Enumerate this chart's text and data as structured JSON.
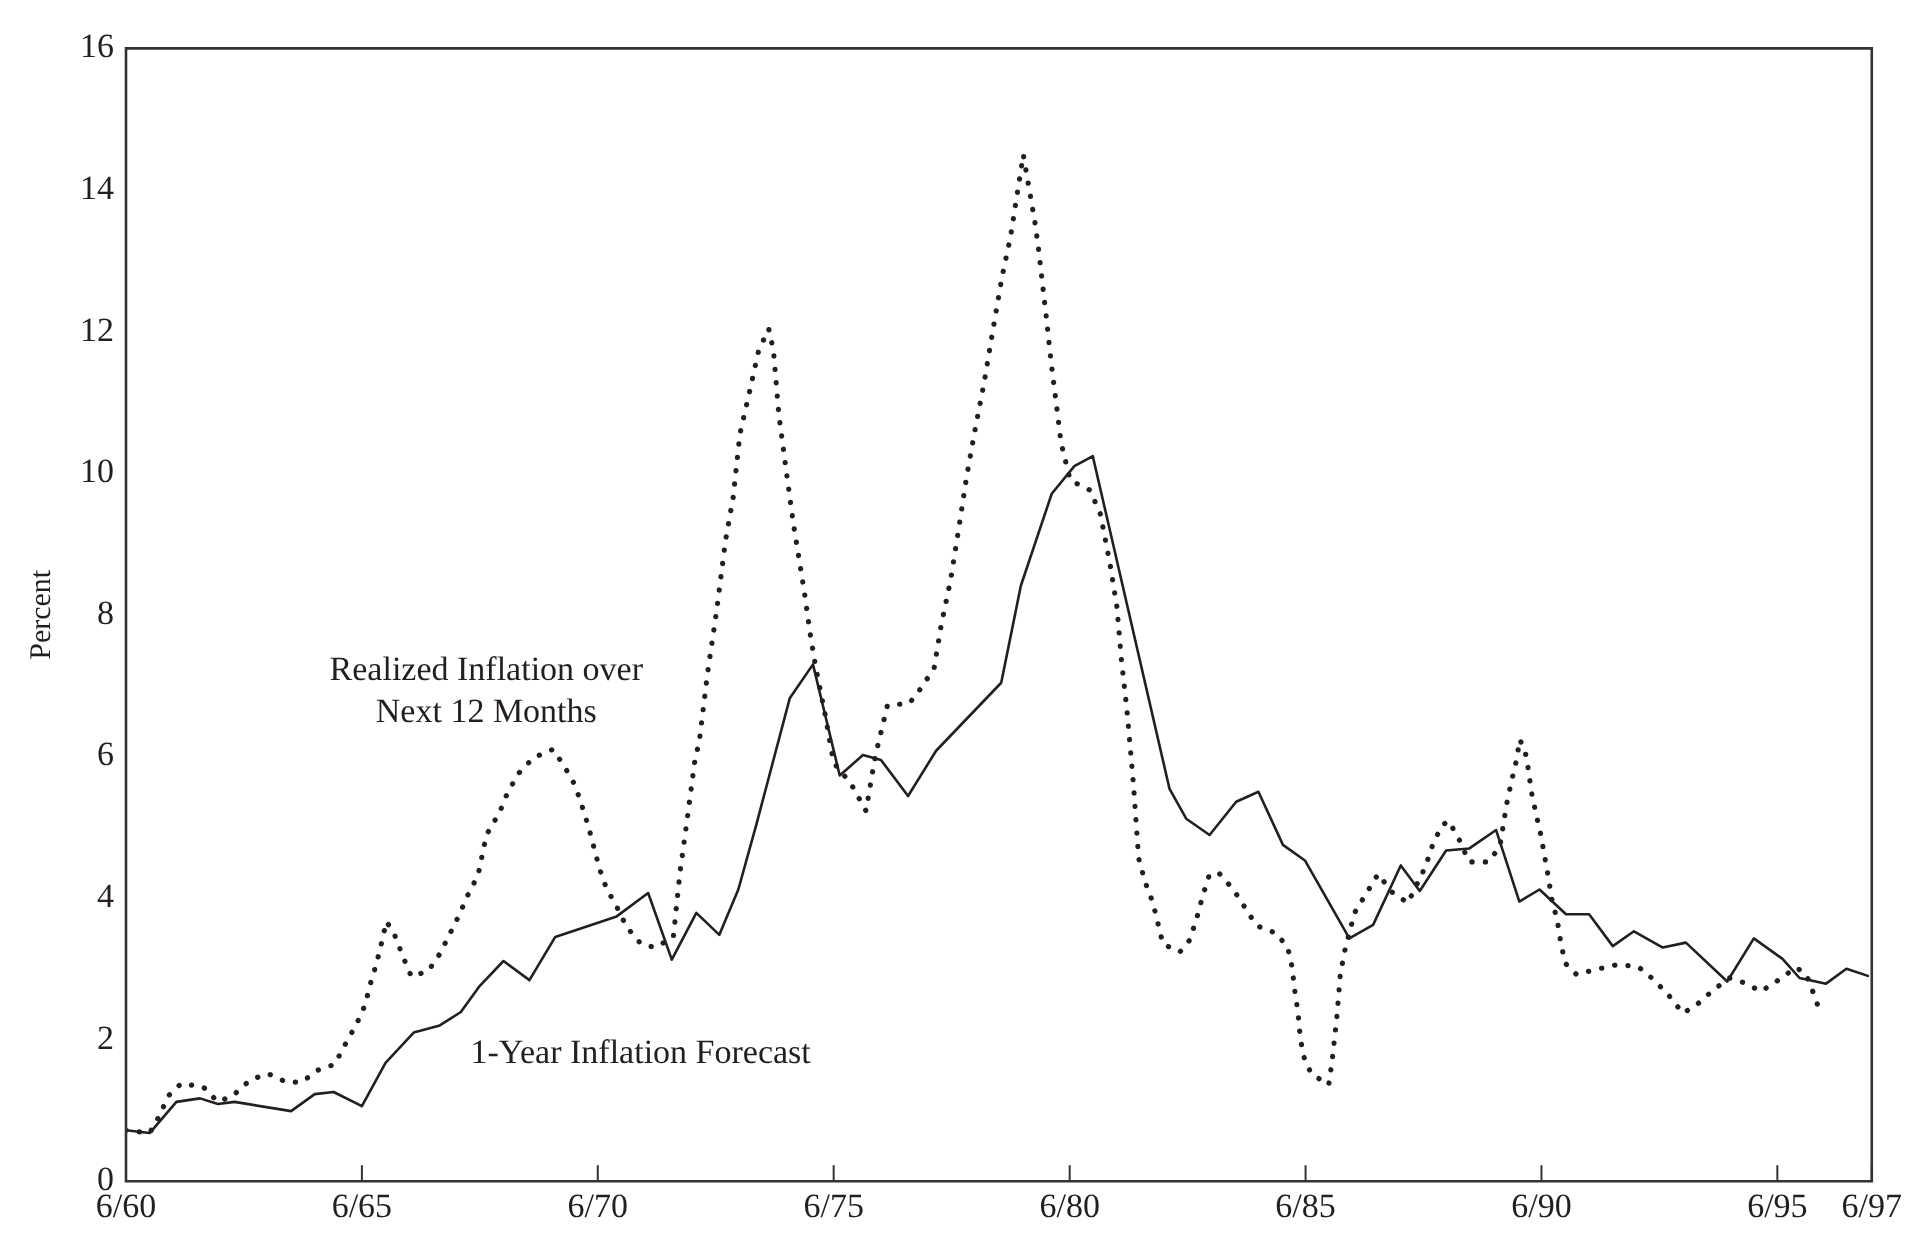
{
  "chart_data": {
    "type": "line",
    "ylabel": "Percent",
    "xlim": [
      "1960-06",
      "1997-06"
    ],
    "ylim": [
      0,
      16
    ],
    "xticks": [
      {
        "value": "1960-06",
        "label": "6/60"
      },
      {
        "value": "1965-06",
        "label": "6/65"
      },
      {
        "value": "1970-06",
        "label": "6/70"
      },
      {
        "value": "1975-06",
        "label": "6/75"
      },
      {
        "value": "1980-06",
        "label": "6/80"
      },
      {
        "value": "1985-06",
        "label": "6/85"
      },
      {
        "value": "1990-06",
        "label": "6/90"
      },
      {
        "value": "1995-06",
        "label": "6/95"
      },
      {
        "value": "1997-06",
        "label": "6/97"
      }
    ],
    "yticks": [
      0,
      2,
      4,
      6,
      8,
      10,
      12,
      14,
      16
    ],
    "legend": false,
    "marker": "none",
    "series": [
      {
        "name": "Realized Inflation over Next 12 Months",
        "color": "#231f20",
        "line_style": "dotted",
        "x": [
          "1960-06-01",
          "1960-12-01",
          "1961-02-20",
          "1961-04-21",
          "1961-08-02",
          "1962-01-21",
          "1962-05-13",
          "1962-09-08",
          "1963-01-18",
          "1963-06-05",
          "1963-10-25",
          "1964-02-20",
          "1964-06-28",
          "1964-11-02",
          "1965-01-25",
          "1965-04-21",
          "1965-06-26",
          "1965-08-06",
          "1965-09-23",
          "1965-11-02",
          "1965-12-08",
          "1966-02-09",
          "1966-04-18",
          "1966-06-19",
          "1966-10-28",
          "1967-01-25",
          "1967-06-19",
          "1967-09-01",
          "1967-11-17",
          "1968-01-21",
          "1968-05-02",
          "1968-07-03",
          "1968-09-26",
          "1969-01-18",
          "1969-06-19",
          "1969-09-15",
          "1969-12-08",
          "1970-01-28",
          "1970-03-19",
          "1970-06-15",
          "1970-08-06",
          "1970-10-25",
          "1971-01-11",
          "1971-05-02",
          "1971-08-20",
          "1972-01-07",
          "1972-02-27",
          "1972-04-18",
          "1972-06-19",
          "1972-07-28",
          "1972-09-28",
          "1972-12-08",
          "1973-02-13",
          "1973-04-14",
          "1973-06-05",
          "1973-08-20",
          "1973-10-28",
          "1974-01-14",
          "1974-02-20",
          "1974-04-03",
          "1974-06-05",
          "1974-07-25",
          "1974-10-14",
          "1974-12-05",
          "1975-01-14",
          "1975-03-28",
          "1975-06-01",
          "1975-10-11",
          "1976-02-06",
          "1976-04-18",
          "1976-07-21",
          "1977-01-07",
          "1977-04-14",
          "1977-07-18",
          "1977-09-08",
          "1977-11-24",
          "1978-01-14",
          "1978-03-28",
          "1978-06-01",
          "1978-08-06",
          "1978-10-25",
          "1978-12-23",
          "1979-03-01",
          "1979-06-08",
          "1979-09-08",
          "1979-10-03",
          "1979-12-05",
          "1980-01-11",
          "1980-02-20",
          "1980-03-26",
          "1980-06-05",
          "1980-11-06",
          "1981-01-25",
          "1981-04-11",
          "1981-06-01",
          "1981-07-07",
          "1981-08-17",
          "1981-10-07",
          "1981-11-17",
          "1982-01-07",
          "1982-03-08",
          "1982-05-24",
          "1982-10-03",
          "1982-12-15",
          "1983-02-09",
          "1983-03-28",
          "1983-05-20",
          "1983-08-06",
          "1983-11-20",
          "1984-02-20",
          "1984-05-17",
          "1984-10-18",
          "1985-01-14",
          "1985-02-17",
          "1985-03-08",
          "1985-04-03",
          "1985-04-18",
          "1985-05-13",
          "1985-07-14",
          "1985-11-27",
          "1985-12-23",
          "1986-01-28",
          "1986-02-24",
          "1986-03-28",
          "1986-06-15",
          "1986-09-19",
          "1986-12-15",
          "1987-03-28",
          "1987-08-02",
          "1987-12-15",
          "1988-02-06",
          "1988-04-18",
          "1988-06-12",
          "1988-09-01",
          "1988-11-17",
          "1989-04-18",
          "1989-07-14",
          "1989-09-05",
          "1989-10-11",
          "1989-11-20",
          "1989-12-15",
          "1990-01-25",
          "1990-02-20",
          "1990-03-15",
          "1990-04-21",
          "1990-05-27",
          "1990-07-25",
          "1990-08-20",
          "1990-10-03",
          "1990-10-28",
          "1990-12-01",
          "1991-02-27",
          "1991-07-28",
          "1992-01-11",
          "1992-06-19",
          "1992-10-21",
          "1993-02-17",
          "1993-06-01",
          "1993-09-26",
          "1994-01-28",
          "1994-05-27",
          "1994-09-23",
          "1995-01-25",
          "1995-06-08",
          "1995-10-25",
          "1996-01-11",
          "1996-03-12",
          "1996-05-02"
        ],
        "values": [
          0.72,
          0.68,
          0.94,
          1.2,
          1.38,
          1.33,
          1.12,
          1.21,
          1.43,
          1.52,
          1.4,
          1.4,
          1.57,
          1.65,
          1.94,
          2.22,
          2.49,
          2.79,
          3.08,
          3.38,
          3.67,
          3.48,
          3.16,
          2.89,
          2.97,
          3.21,
          3.74,
          4.05,
          4.32,
          4.89,
          5.21,
          5.49,
          5.76,
          5.98,
          6.1,
          5.86,
          5.59,
          5.31,
          5.02,
          4.41,
          4.14,
          3.88,
          3.59,
          3.35,
          3.3,
          3.45,
          4.36,
          5.04,
          5.91,
          6.24,
          7.18,
          8.07,
          9.04,
          9.66,
          10.55,
          11.16,
          11.73,
          12.04,
          11.73,
          10.82,
          9.95,
          9.28,
          8.36,
          7.69,
          7.25,
          6.58,
          5.91,
          5.62,
          5.23,
          6.0,
          6.72,
          6.75,
          6.98,
          7.25,
          7.83,
          8.51,
          9.1,
          9.97,
          10.63,
          11.25,
          12.12,
          12.75,
          13.34,
          14.5,
          13.52,
          13.18,
          12.17,
          11.54,
          10.96,
          10.43,
          9.9,
          9.76,
          9.42,
          8.7,
          8.12,
          7.35,
          6.68,
          5.62,
          4.56,
          4.22,
          3.93,
          3.35,
          3.24,
          3.4,
          3.71,
          4.03,
          4.34,
          4.34,
          4.12,
          3.86,
          3.61,
          3.5,
          3.3,
          3.02,
          2.71,
          2.39,
          2.08,
          1.78,
          1.52,
          1.36,
          1.69,
          2.29,
          2.9,
          3.23,
          3.79,
          4.08,
          4.34,
          4.09,
          3.93,
          4.44,
          4.73,
          5.02,
          5.09,
          4.83,
          4.51,
          4.51,
          4.73,
          5.33,
          5.64,
          5.95,
          6.24,
          6.08,
          5.81,
          5.5,
          5.18,
          4.89,
          4.29,
          3.98,
          3.67,
          3.38,
          3.08,
          2.92,
          2.99,
          3.06,
          3.03,
          2.84,
          2.61,
          2.37,
          2.51,
          2.71,
          2.87,
          2.8,
          2.68,
          2.84,
          3.02,
          2.92,
          2.63,
          2.36
        ]
      },
      {
        "name": "1-Year Inflation Forecast",
        "color": "#231f20",
        "line_style": "solid",
        "x": [
          "1960-06-01",
          "1960-12-01",
          "1961-06-26",
          "1961-12-26",
          "1962-05-13",
          "1962-09-19",
          "1963-12-01",
          "1964-06-01",
          "1964-10-25",
          "1965-06-01",
          "1965-12-01",
          "1966-07-07",
          "1967-01-25",
          "1967-07-07",
          "1967-12-01",
          "1968-06-01",
          "1968-12-19",
          "1969-07-07",
          "1970-10-25",
          "1971-06-26",
          "1971-12-26",
          "1972-07-03",
          "1972-12-28",
          "1973-05-24",
          "1973-10-11",
          "1974-06-26",
          "1974-12-23",
          "1975-07-18",
          "1976-01-14",
          "1976-06-01",
          "1976-12-28",
          "1977-08-02",
          "1978-12-19",
          "1979-05-20",
          "1980-01-14",
          "1980-07-07",
          "1980-11-27",
          "1982-07-14",
          "1982-11-20",
          "1983-05-20",
          "1983-12-12",
          "1984-06-01",
          "1984-12-08",
          "1985-05-27",
          "1986-05-06",
          "1986-11-06",
          "1987-06-08",
          "1987-11-02",
          "1988-05-24",
          "1988-11-20",
          "1989-06-15",
          "1989-12-12",
          "1990-05-17",
          "1990-12-08",
          "1991-06-05",
          "1991-12-05",
          "1992-05-17",
          "1992-12-26",
          "1993-06-23",
          "1994-05-09",
          "1994-12-01",
          "1995-07-11",
          "1995-11-20",
          "1996-06-12",
          "1996-11-17",
          "1997-05-02"
        ],
        "values": [
          0.72,
          0.68,
          1.12,
          1.17,
          1.09,
          1.12,
          0.99,
          1.23,
          1.26,
          1.06,
          1.67,
          2.1,
          2.2,
          2.39,
          2.76,
          3.11,
          2.84,
          3.45,
          3.74,
          4.07,
          3.13,
          3.79,
          3.48,
          4.12,
          5.04,
          6.82,
          7.3,
          5.73,
          6.02,
          5.95,
          5.44,
          6.08,
          7.04,
          8.41,
          9.71,
          10.1,
          10.24,
          5.54,
          5.12,
          4.89,
          5.36,
          5.5,
          4.75,
          4.53,
          3.43,
          3.62,
          4.46,
          4.1,
          4.67,
          4.7,
          4.96,
          3.95,
          4.12,
          3.77,
          3.77,
          3.32,
          3.53,
          3.3,
          3.37,
          2.82,
          3.43,
          3.14,
          2.87,
          2.79,
          3.0,
          2.9
        ]
      }
    ]
  }
}
